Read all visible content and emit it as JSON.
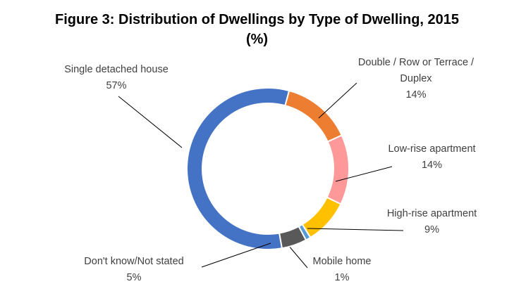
{
  "chart_data": {
    "type": "donut",
    "title": "Figure 3: Distribution of Dwellings by Type of Dwelling, 2015 (%)",
    "categories": [
      "Single detached  house",
      "Double / Row or Terrace / Duplex",
      "Low-rise apartment",
      "High-rise apartment",
      "Mobile home",
      "Don't know/Not stated"
    ],
    "values": [
      57,
      14,
      14,
      9,
      1,
      5
    ],
    "value_labels": [
      "57%",
      "14%",
      "14%",
      "9%",
      "1%",
      "5%"
    ],
    "colors": [
      "#4472c4",
      "#ed7d31",
      "#ff9999",
      "#ffc000",
      "#5b9bd5",
      "#595959"
    ]
  }
}
